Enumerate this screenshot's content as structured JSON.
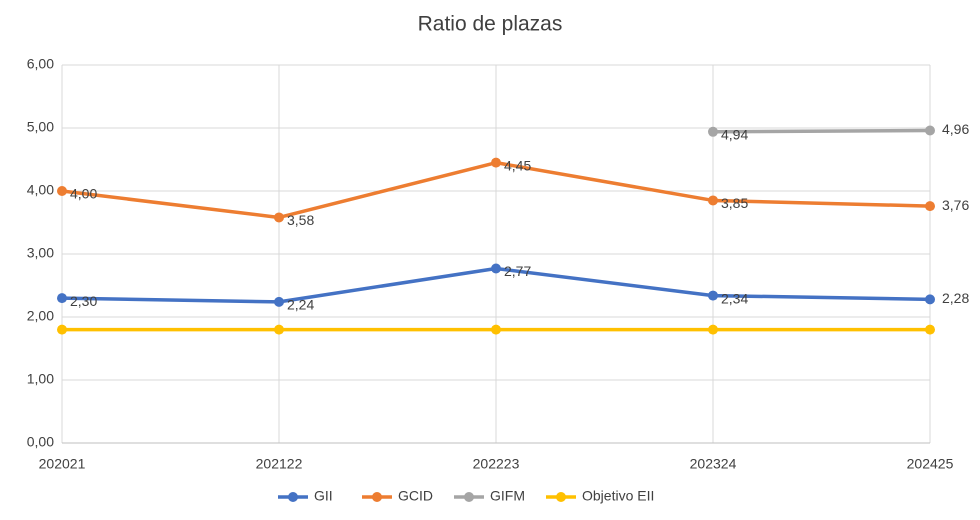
{
  "chart_data": {
    "type": "line",
    "title": "Ratio de plazas",
    "categories": [
      "202021",
      "202122",
      "202223",
      "202324",
      "202425"
    ],
    "series": [
      {
        "name": "GII",
        "color": "#4472c4",
        "values": [
          2.3,
          2.24,
          2.77,
          2.34,
          2.28
        ],
        "value_labels": [
          "2,30",
          "2,24",
          "2,77",
          "2,34",
          "2,28"
        ]
      },
      {
        "name": "GCID",
        "color": "#ed7d31",
        "values": [
          4.0,
          3.58,
          4.45,
          3.85,
          3.76
        ],
        "value_labels": [
          "4,00",
          "3,58",
          "4,45",
          "3,85",
          "3,76"
        ]
      },
      {
        "name": "GIFM",
        "color": "#a5a5a5",
        "values": [
          null,
          null,
          null,
          4.94,
          4.96
        ],
        "value_labels": [
          null,
          null,
          null,
          "4,94",
          "4,96"
        ]
      },
      {
        "name": "Objetivo EII",
        "color": "#ffc000",
        "values": [
          1.8,
          1.8,
          1.8,
          1.8,
          1.8
        ]
      }
    ],
    "ylim": [
      0,
      6
    ],
    "yticks": [
      {
        "value": 0,
        "label": "0,00"
      },
      {
        "value": 1,
        "label": "1,00"
      },
      {
        "value": 2,
        "label": "2,00"
      },
      {
        "value": 3,
        "label": "3,00"
      },
      {
        "value": 4,
        "label": "4,00"
      },
      {
        "value": 5,
        "label": "5,00"
      },
      {
        "value": 6,
        "label": "6,00"
      }
    ],
    "grid": true,
    "legend": "bottom"
  }
}
